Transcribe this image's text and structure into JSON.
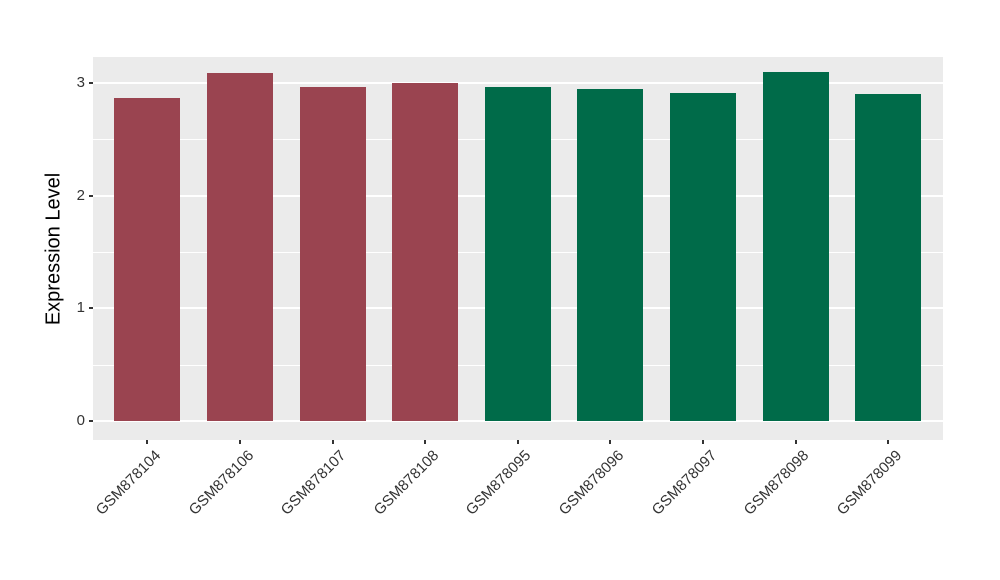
{
  "chart_data": {
    "type": "bar",
    "title": "",
    "xlabel": "",
    "ylabel": "Expression Level",
    "categories": [
      "GSM878104",
      "GSM878106",
      "GSM878107",
      "GSM878108",
      "GSM878095",
      "GSM878096",
      "GSM878097",
      "GSM878098",
      "GSM878099"
    ],
    "values": [
      2.87,
      3.09,
      2.96,
      3.0,
      2.96,
      2.95,
      2.91,
      3.1,
      2.9
    ],
    "groups": [
      "maroon",
      "maroon",
      "maroon",
      "maroon",
      "green",
      "green",
      "green",
      "green",
      "green"
    ],
    "group_colors": {
      "maroon": "#9A4450",
      "green": "#006B49"
    },
    "yticks": [
      0,
      1,
      2,
      3
    ],
    "minor_yticks": [
      0.5,
      1.5,
      2.5
    ],
    "ylim": [
      0,
      3.1
    ],
    "x_tick_angle": 45,
    "grid": true,
    "legend": false,
    "panel_bg": "#EBEBEB",
    "grid_color": "#FFFFFF",
    "tick_color": "#333333",
    "label_color": "#333333",
    "axis_title_color": "#000000"
  }
}
